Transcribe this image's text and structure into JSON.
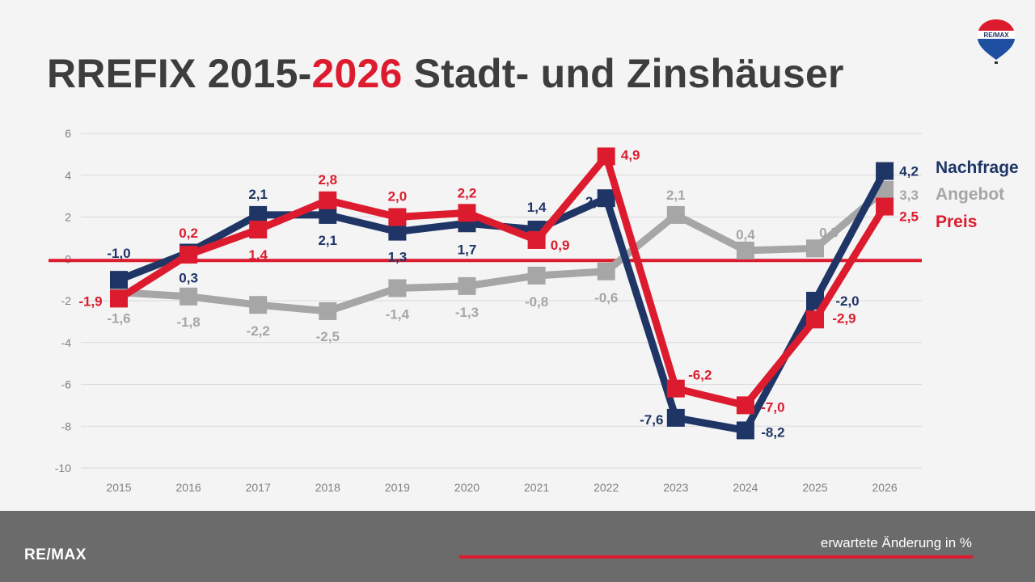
{
  "title": {
    "part1": "RREFIX 2015-",
    "highlight": "2026",
    "part2": " Stadt- und Zinshäuser"
  },
  "logo_text": "RE/MAX",
  "footer": {
    "brand": "RE/MAX",
    "note": "erwartete Änderung in %"
  },
  "colors": {
    "Nachfrage": "#1f3566",
    "Angebot": "#a6a6a6",
    "Preis": "#dc1c2e",
    "zero_line": "#dc1c2e",
    "footer": "#6b6b6b"
  },
  "chart_data": {
    "type": "line",
    "title": "",
    "xlabel": "",
    "ylabel": "",
    "categories": [
      "2015",
      "2016",
      "2017",
      "2018",
      "2019",
      "2020",
      "2021",
      "2022",
      "2023",
      "2024",
      "2025",
      "2026"
    ],
    "ylim": [
      -10,
      6
    ],
    "yticks": [
      6,
      4,
      2,
      0,
      -2,
      -4,
      -6,
      -8,
      -10
    ],
    "grid": true,
    "legend": "right",
    "series": [
      {
        "name": "Angebot",
        "values": [
          -1.6,
          -1.8,
          -2.2,
          -2.5,
          -1.4,
          -1.3,
          -0.8,
          -0.6,
          2.1,
          0.4,
          0.5,
          3.3
        ],
        "labels": [
          "-1,6",
          "-1,8",
          "-2,2",
          "-2,5",
          "-1,4",
          "-1,3",
          "-0,8",
          "-0,6",
          "2,1",
          "0,4",
          "0,5",
          "3,3"
        ]
      },
      {
        "name": "Nachfrage",
        "values": [
          -1.0,
          0.3,
          2.1,
          2.1,
          1.3,
          1.7,
          1.4,
          2.9,
          -7.6,
          -8.2,
          -2.0,
          4.2
        ],
        "labels": [
          "-1,0",
          "0,3",
          "2,1",
          "2,1",
          "1,3",
          "1,7",
          "1,4",
          "2,9",
          "-7,6",
          "-8,2",
          "-2,0",
          "4,2"
        ]
      },
      {
        "name": "Preis",
        "values": [
          -1.9,
          0.2,
          1.4,
          2.8,
          2.0,
          2.2,
          0.9,
          4.9,
          -6.2,
          -7.0,
          -2.9,
          2.5
        ],
        "labels": [
          "-1,9",
          "0,2",
          "1,4",
          "2,8",
          "2,0",
          "2,2",
          "0,9",
          "4,9",
          "-6,2",
          "-7,0",
          "-2,9",
          "2,5"
        ]
      }
    ],
    "legend_order": [
      "Nachfrage",
      "Angebot",
      "Preis"
    ]
  }
}
